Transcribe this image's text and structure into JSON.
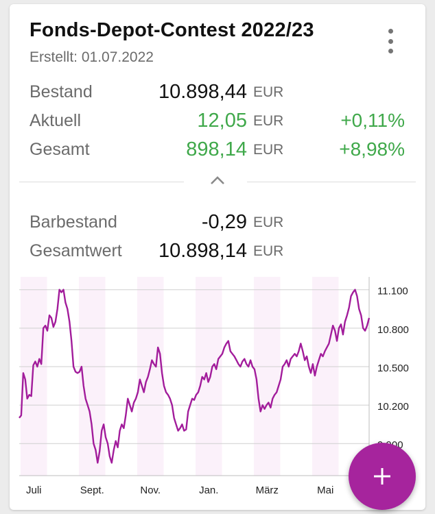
{
  "card": {
    "title": "Fonds-Depot-Contest 2022/23",
    "created": "Erstellt: 01.07.2022"
  },
  "rows": [
    {
      "label": "Bestand",
      "value": "10.898,44",
      "currency": "EUR",
      "percent": ""
    },
    {
      "label": "Aktuell",
      "value": "12,05",
      "currency": "EUR",
      "percent": "+0,11%"
    },
    {
      "label": "Gesamt",
      "value": "898,14",
      "currency": "EUR",
      "percent": "+8,98%"
    }
  ],
  "rows2": [
    {
      "label": "Barbestand",
      "value": "-0,29",
      "currency": "EUR"
    },
    {
      "label": "Gesamtwert",
      "value": "10.898,14",
      "currency": "EUR"
    }
  ],
  "colors": {
    "positive": "#3fa84a",
    "line": "#a21c9b",
    "accent": "#a6249d",
    "band": "#fbf1fa"
  },
  "icons": {
    "menu": "more-vert-icon",
    "collapse": "chevron-up-icon",
    "fab": "plus-icon"
  },
  "chart_data": {
    "type": "line",
    "xlabels": [
      "Juli",
      "Sept.",
      "Nov.",
      "Jan.",
      "März",
      "Mai"
    ],
    "yticks": [
      9900,
      10200,
      10500,
      10800,
      11100
    ],
    "ytick_labels": [
      "9.900",
      "10.200",
      "10.500",
      "10.800",
      "11.100"
    ],
    "ylim": [
      9650,
      11200
    ],
    "month_bands": true,
    "series": [
      {
        "values": [
          10100,
          10120,
          10450,
          10400,
          10250,
          10280,
          10270,
          10510,
          10540,
          10500,
          10560,
          10520,
          10800,
          10820,
          10780,
          10900,
          10880,
          10810,
          10850,
          10950,
          11100,
          11080,
          11100,
          11000,
          10950,
          10850,
          10700,
          10500,
          10460,
          10450,
          10460,
          10500,
          10350,
          10250,
          10200,
          10150,
          10050,
          9900,
          9850,
          9750,
          9840,
          10000,
          10050,
          9950,
          9900,
          9800,
          9750,
          9850,
          9920,
          9870,
          10000,
          10050,
          10020,
          10120,
          10250,
          10200,
          10150,
          10220,
          10250,
          10300,
          10400,
          10350,
          10300,
          10380,
          10420,
          10480,
          10550,
          10520,
          10500,
          10650,
          10600,
          10450,
          10350,
          10300,
          10280,
          10250,
          10200,
          10100,
          10050,
          10000,
          10020,
          10050,
          10000,
          10010,
          10150,
          10200,
          10250,
          10240,
          10280,
          10300,
          10350,
          10420,
          10400,
          10450,
          10380,
          10420,
          10500,
          10520,
          10480,
          10560,
          10580,
          10600,
          10650,
          10680,
          10700,
          10620,
          10600,
          10580,
          10550,
          10520,
          10500,
          10540,
          10560,
          10520,
          10500,
          10550,
          10500,
          10480,
          10400,
          10250,
          10150,
          10200,
          10170,
          10200,
          10220,
          10180,
          10250,
          10280,
          10300,
          10350,
          10400,
          10500,
          10520,
          10550,
          10500,
          10560,
          10580,
          10600,
          10580,
          10620,
          10680,
          10620,
          10550,
          10580,
          10500,
          10450,
          10520,
          10430,
          10500,
          10550,
          10600,
          10580,
          10620,
          10650,
          10680,
          10750,
          10820,
          10780,
          10700,
          10800,
          10830,
          10750,
          10850,
          10900,
          10960,
          11050,
          11080,
          11100,
          11050,
          10950,
          10900,
          10800,
          10780,
          10820,
          10880
        ]
      }
    ]
  }
}
